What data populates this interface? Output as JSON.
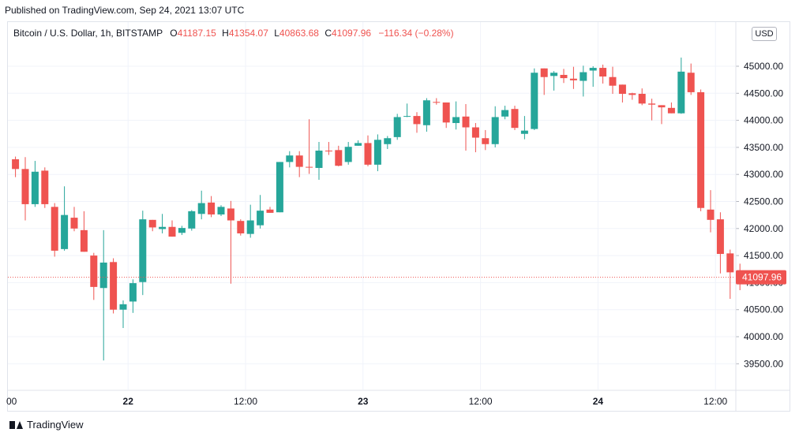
{
  "published": "Published on TradingView.com, Sep 24, 2021 13:07 UTC",
  "header": {
    "symbol": "Bitcoin / U.S. Dollar, 1h, BITSTAMP",
    "o_key": "O",
    "o_val": "41187.15",
    "h_key": "H",
    "h_val": "41354.07",
    "l_key": "L",
    "l_val": "40863.68",
    "c_key": "C",
    "c_val": "41097.96",
    "change": "−116.34 (−0.28%)"
  },
  "currency": "USD",
  "last_price_label": "41097.96",
  "footer_brand": "TradingView",
  "colors": {
    "up": "#26a69a",
    "down": "#ef5350",
    "grid": "#f0f3fa",
    "text": "#131722"
  },
  "chart_data": {
    "type": "candlestick",
    "title": "Bitcoin / U.S. Dollar, 1h, BITSTAMP",
    "ylim": [
      39500,
      45000
    ],
    "y_ticks": [
      "45000.00",
      "44500.00",
      "44000.00",
      "43500.00",
      "43000.00",
      "42500.00",
      "42000.00",
      "41500.00",
      "41000.00",
      "40500.00",
      "40000.00",
      "39500.00"
    ],
    "x_ticks": [
      {
        "label": "00",
        "x": 0
      },
      {
        "label": "22",
        "x": 12
      },
      {
        "label": "12:00",
        "x": 24
      },
      {
        "label": "23",
        "x": 36
      },
      {
        "label": "12:00",
        "x": 48
      },
      {
        "label": "24",
        "x": 60
      },
      {
        "label": "12:00",
        "x": 72
      }
    ],
    "last_price": 41097.96,
    "candles": [
      {
        "o": 43280,
        "h": 43330,
        "l": 42950,
        "c": 43100
      },
      {
        "o": 43100,
        "h": 43320,
        "l": 42150,
        "c": 42450
      },
      {
        "o": 42450,
        "h": 43250,
        "l": 42400,
        "c": 43050
      },
      {
        "o": 43070,
        "h": 43130,
        "l": 42380,
        "c": 42450
      },
      {
        "o": 42400,
        "h": 42470,
        "l": 41480,
        "c": 41590
      },
      {
        "o": 41620,
        "h": 42780,
        "l": 41590,
        "c": 42250
      },
      {
        "o": 42200,
        "h": 42400,
        "l": 41950,
        "c": 42000
      },
      {
        "o": 41970,
        "h": 42320,
        "l": 41570,
        "c": 41570
      },
      {
        "o": 41500,
        "h": 41550,
        "l": 40680,
        "c": 40920
      },
      {
        "o": 40900,
        "h": 41970,
        "l": 39560,
        "c": 41370
      },
      {
        "o": 41380,
        "h": 41450,
        "l": 40430,
        "c": 40500
      },
      {
        "o": 40500,
        "h": 40670,
        "l": 40160,
        "c": 40600
      },
      {
        "o": 40650,
        "h": 41060,
        "l": 40440,
        "c": 40990
      },
      {
        "o": 41010,
        "h": 42330,
        "l": 40770,
        "c": 42170
      },
      {
        "o": 42160,
        "h": 42150,
        "l": 41950,
        "c": 42020
      },
      {
        "o": 41990,
        "h": 42270,
        "l": 41910,
        "c": 42030
      },
      {
        "o": 42030,
        "h": 42150,
        "l": 41850,
        "c": 41850
      },
      {
        "o": 41920,
        "h": 42050,
        "l": 41880,
        "c": 42010
      },
      {
        "o": 42000,
        "h": 42340,
        "l": 41960,
        "c": 42320
      },
      {
        "o": 42270,
        "h": 42700,
        "l": 42170,
        "c": 42470
      },
      {
        "o": 42480,
        "h": 42600,
        "l": 42210,
        "c": 42260
      },
      {
        "o": 42260,
        "h": 42430,
        "l": 42230,
        "c": 42400
      },
      {
        "o": 42370,
        "h": 42510,
        "l": 40980,
        "c": 42150
      },
      {
        "o": 42140,
        "h": 42170,
        "l": 41870,
        "c": 41910
      },
      {
        "o": 41900,
        "h": 42440,
        "l": 41830,
        "c": 42150
      },
      {
        "o": 42060,
        "h": 42620,
        "l": 42000,
        "c": 42330
      },
      {
        "o": 42350,
        "h": 42400,
        "l": 42290,
        "c": 42290
      },
      {
        "o": 42300,
        "h": 43220,
        "l": 42300,
        "c": 43230
      },
      {
        "o": 43230,
        "h": 43430,
        "l": 43130,
        "c": 43350
      },
      {
        "o": 43350,
        "h": 43430,
        "l": 42950,
        "c": 43140
      },
      {
        "o": 43140,
        "h": 44020,
        "l": 43010,
        "c": 43130
      },
      {
        "o": 43120,
        "h": 43600,
        "l": 42900,
        "c": 43440
      },
      {
        "o": 43440,
        "h": 43600,
        "l": 43360,
        "c": 43430
      },
      {
        "o": 43450,
        "h": 43530,
        "l": 43150,
        "c": 43160
      },
      {
        "o": 43230,
        "h": 43600,
        "l": 43180,
        "c": 43510
      },
      {
        "o": 43530,
        "h": 43630,
        "l": 43530,
        "c": 43580
      },
      {
        "o": 43580,
        "h": 43720,
        "l": 43150,
        "c": 43180
      },
      {
        "o": 43180,
        "h": 43740,
        "l": 43060,
        "c": 43640
      },
      {
        "o": 43560,
        "h": 43710,
        "l": 43470,
        "c": 43670
      },
      {
        "o": 43690,
        "h": 44120,
        "l": 43640,
        "c": 44060
      },
      {
        "o": 44080,
        "h": 44310,
        "l": 44060,
        "c": 44080
      },
      {
        "o": 44080,
        "h": 44150,
        "l": 43770,
        "c": 43930
      },
      {
        "o": 43910,
        "h": 44410,
        "l": 43790,
        "c": 44370
      },
      {
        "o": 44340,
        "h": 44410,
        "l": 44290,
        "c": 44330
      },
      {
        "o": 44330,
        "h": 44330,
        "l": 43860,
        "c": 43960
      },
      {
        "o": 43950,
        "h": 44350,
        "l": 43830,
        "c": 44060
      },
      {
        "o": 44070,
        "h": 44300,
        "l": 43440,
        "c": 43870
      },
      {
        "o": 43870,
        "h": 43950,
        "l": 43410,
        "c": 43680
      },
      {
        "o": 43670,
        "h": 43820,
        "l": 43450,
        "c": 43560
      },
      {
        "o": 43560,
        "h": 44260,
        "l": 43500,
        "c": 44060
      },
      {
        "o": 44070,
        "h": 44270,
        "l": 44020,
        "c": 44190
      },
      {
        "o": 44210,
        "h": 44270,
        "l": 43820,
        "c": 43860
      },
      {
        "o": 43750,
        "h": 44080,
        "l": 43650,
        "c": 43810
      },
      {
        "o": 43840,
        "h": 44960,
        "l": 43820,
        "c": 44880
      },
      {
        "o": 44960,
        "h": 44960,
        "l": 44470,
        "c": 44800
      },
      {
        "o": 44820,
        "h": 44910,
        "l": 44550,
        "c": 44880
      },
      {
        "o": 44840,
        "h": 44950,
        "l": 44690,
        "c": 44780
      },
      {
        "o": 44770,
        "h": 44990,
        "l": 44580,
        "c": 44740
      },
      {
        "o": 44730,
        "h": 45010,
        "l": 44440,
        "c": 44890
      },
      {
        "o": 44920,
        "h": 45000,
        "l": 44620,
        "c": 44970
      },
      {
        "o": 44970,
        "h": 45030,
        "l": 44680,
        "c": 44810
      },
      {
        "o": 44800,
        "h": 44990,
        "l": 44490,
        "c": 44640
      },
      {
        "o": 44660,
        "h": 44660,
        "l": 44330,
        "c": 44490
      },
      {
        "o": 44500,
        "h": 44510,
        "l": 44380,
        "c": 44470
      },
      {
        "o": 44490,
        "h": 44590,
        "l": 44280,
        "c": 44310
      },
      {
        "o": 44310,
        "h": 44400,
        "l": 44000,
        "c": 44290
      },
      {
        "o": 44280,
        "h": 44270,
        "l": 43930,
        "c": 44240
      },
      {
        "o": 44230,
        "h": 44330,
        "l": 44180,
        "c": 44130
      },
      {
        "o": 44130,
        "h": 45160,
        "l": 44120,
        "c": 44900
      },
      {
        "o": 44880,
        "h": 45050,
        "l": 44470,
        "c": 44520
      },
      {
        "o": 44520,
        "h": 44570,
        "l": 42320,
        "c": 42380
      },
      {
        "o": 42350,
        "h": 42710,
        "l": 41930,
        "c": 42160
      },
      {
        "o": 42170,
        "h": 42300,
        "l": 41170,
        "c": 41530
      },
      {
        "o": 41540,
        "h": 41610,
        "l": 40700,
        "c": 41190
      },
      {
        "o": 41190,
        "h": 41350,
        "l": 40860,
        "c": 41100
      }
    ]
  }
}
